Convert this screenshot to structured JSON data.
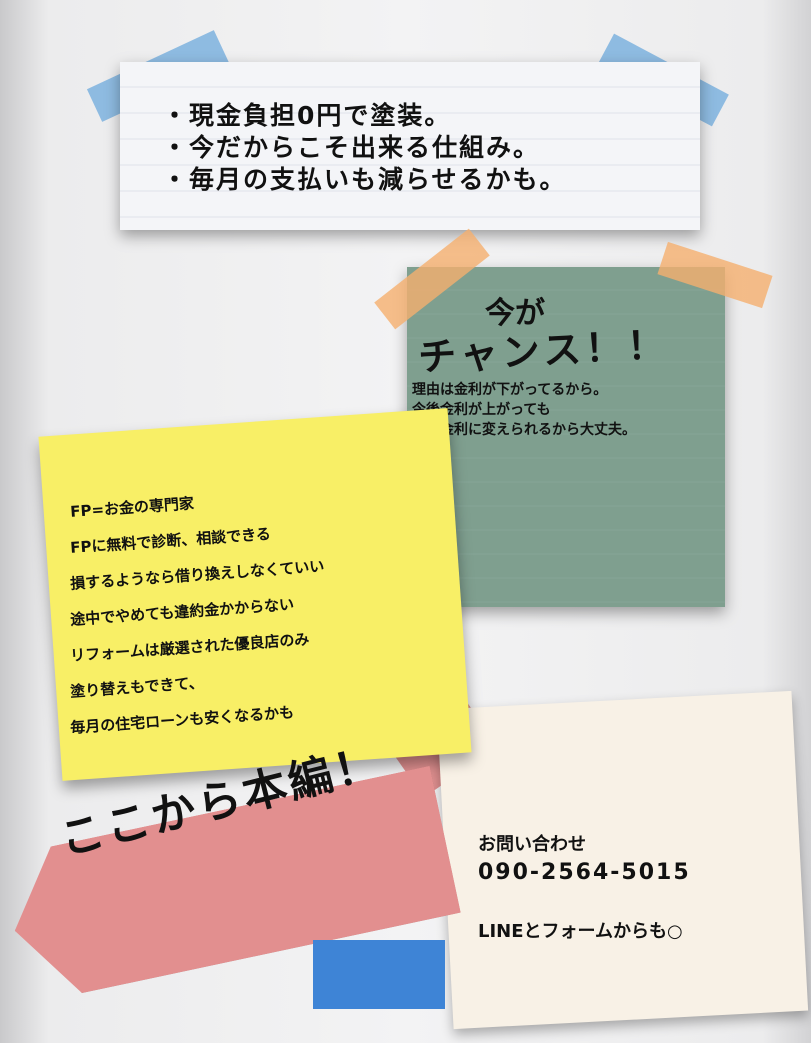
{
  "top_note": {
    "lines": [
      "・現金負担0円で塗装。",
      "・今だからこそ出来る仕組み。",
      "・毎月の支払いも減らせるかも。"
    ]
  },
  "green_note": {
    "headline_1": "今が",
    "headline_2": "チャンス！！",
    "body": [
      "理由は金利が下がってるから。",
      "今後金利が上がっても",
      "固定金利に変えられるから大丈夫。"
    ]
  },
  "yellow_note": {
    "lines": [
      "FP=お金の専門家",
      "FPに無料で診断、相談できる",
      "損するようなら借り換えしなくていい",
      "途中でやめても違約金かからない",
      "リフォームは厳選された優良店のみ",
      "塗り替えもできて、",
      "毎月の住宅ローンも安くなるかも"
    ]
  },
  "banner": {
    "text": "ここから本編！"
  },
  "contact": {
    "label": "お問い合わせ",
    "phone": "090-2564-5015",
    "note": "LINEとフォームからも○"
  }
}
